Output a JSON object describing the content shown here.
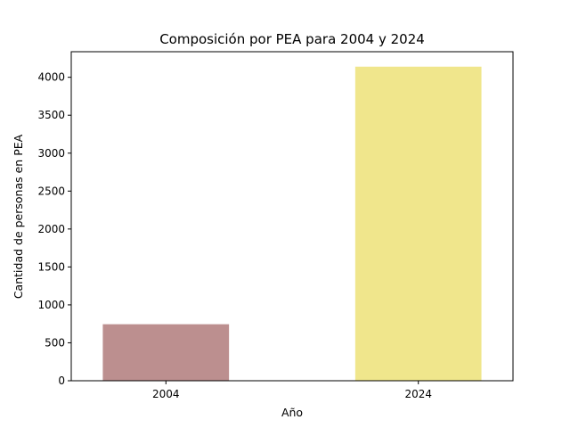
{
  "chart_data": {
    "type": "bar",
    "title": "Composición por PEA para 2004 y 2024",
    "xlabel": "Año",
    "ylabel": "Cantidad de personas en PEA",
    "categories": [
      "2004",
      "2024"
    ],
    "values": [
      745,
      4140
    ],
    "bar_colors": [
      "#bc8f8f",
      "#f0e68c"
    ],
    "ylim": [
      0,
      4337
    ],
    "yticks": [
      0,
      500,
      1000,
      1500,
      2000,
      2500,
      3000,
      3500,
      4000
    ],
    "grid": false,
    "legend": "none"
  }
}
